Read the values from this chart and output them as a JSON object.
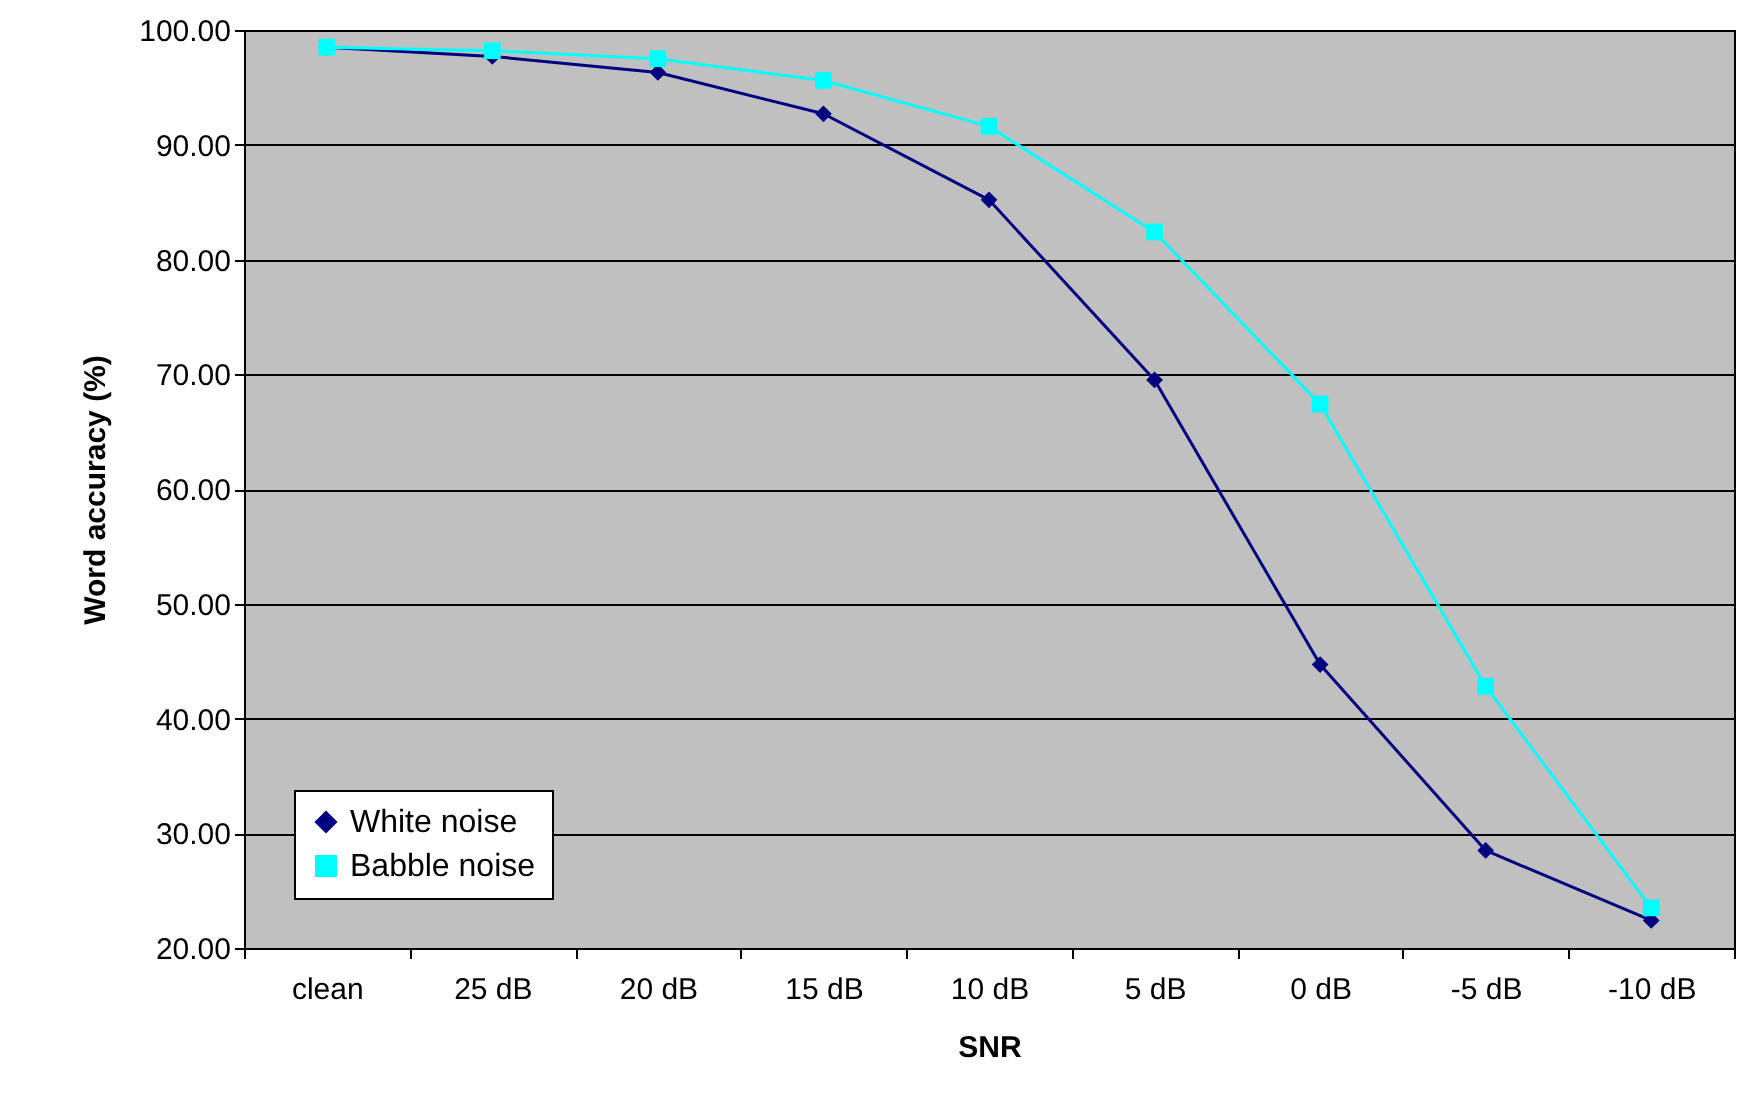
{
  "chart_data": {
    "type": "line",
    "xlabel": "SNR",
    "ylabel": "Word accuracy (%)",
    "categories": [
      "clean",
      "25 dB",
      "20 dB",
      "15 dB",
      "10 dB",
      "5 dB",
      "0 dB",
      "-5 dB",
      "-10 dB"
    ],
    "series": [
      {
        "name": "White noise",
        "color": "#000080",
        "marker": "diamond",
        "values": [
          98.5,
          97.7,
          96.3,
          92.7,
          85.2,
          69.5,
          44.7,
          28.5,
          22.4
        ]
      },
      {
        "name": "Babble noise",
        "color": "#00ffff",
        "marker": "square",
        "values": [
          98.5,
          98.2,
          97.5,
          95.6,
          91.6,
          82.4,
          67.4,
          42.8,
          23.5
        ]
      }
    ],
    "ylim": [
      20,
      100
    ],
    "yticks": [
      {
        "value": 20,
        "label": "20.00"
      },
      {
        "value": 30,
        "label": "30.00"
      },
      {
        "value": 40,
        "label": "40.00"
      },
      {
        "value": 50,
        "label": "50.00"
      },
      {
        "value": 60,
        "label": "60.00"
      },
      {
        "value": 70,
        "label": "70.00"
      },
      {
        "value": 80,
        "label": "80.00"
      },
      {
        "value": 90,
        "label": "90.00"
      },
      {
        "value": 100,
        "label": "100.00"
      }
    ],
    "grid": "y",
    "legend": "bottom left",
    "line_style": "solid"
  }
}
